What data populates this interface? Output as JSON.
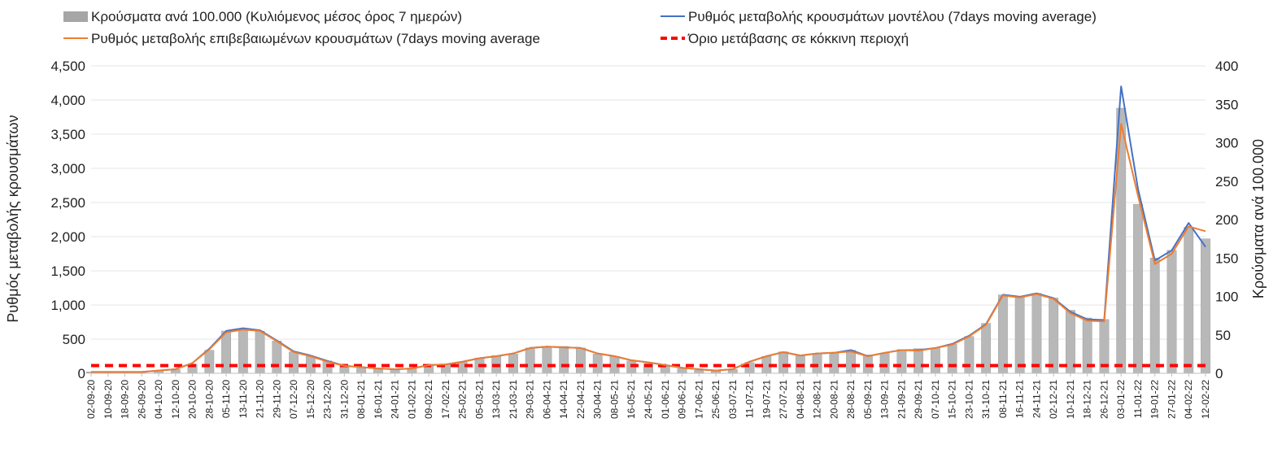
{
  "chart_data": {
    "type": "bar+line",
    "legend": {
      "placement": "top",
      "items": [
        {
          "label": "Κρούσματα ανά 100.000 (Κυλιόμενος μέσος όρος 7 ημερών)",
          "kind": "bar",
          "color": "#a6a6a6"
        },
        {
          "label": "Ρυθμός μεταβολής κρουσμάτων μοντέλου (7days moving average)",
          "kind": "line",
          "color": "#4472c4"
        },
        {
          "label": "Ρυθμός μεταβολής επιβεβαιωμένων κρουσμάτων (7days moving average",
          "kind": "line",
          "color": "#ed7d31"
        },
        {
          "label": "Όριο μετάβασης σε κόκκινη περιοχή",
          "kind": "dashed",
          "color": "#ff0000"
        }
      ]
    },
    "ylabel_left": "Ρυθμός μεταβολής κρουσμάτων",
    "ylabel_right": "Κρούσματα ανά 100.000",
    "ylim_left": [
      0,
      4500
    ],
    "ylim_right": [
      0,
      400
    ],
    "yticks_left": [
      "0",
      "500",
      "1,000",
      "1,500",
      "2,000",
      "2,500",
      "3,000",
      "3,500",
      "4,000",
      "4,500"
    ],
    "yticks_right": [
      "0",
      "50",
      "100",
      "150",
      "200",
      "250",
      "300",
      "350",
      "400"
    ],
    "grid": true,
    "x_categories": [
      "02-09-20",
      "10-09-20",
      "18-09-20",
      "26-09-20",
      "04-10-20",
      "12-10-20",
      "20-10-20",
      "28-10-20",
      "05-11-20",
      "13-11-20",
      "21-11-20",
      "29-11-20",
      "07-12-20",
      "15-12-20",
      "23-12-20",
      "31-12-20",
      "08-01-21",
      "16-01-21",
      "24-01-21",
      "01-02-21",
      "09-02-21",
      "17-02-21",
      "25-02-21",
      "05-03-21",
      "13-03-21",
      "21-03-21",
      "29-03-21",
      "06-04-21",
      "14-04-21",
      "22-04-21",
      "30-04-21",
      "08-05-21",
      "16-05-21",
      "24-05-21",
      "01-06-21",
      "09-06-21",
      "17-06-21",
      "25-06-21",
      "03-07-21",
      "11-07-21",
      "19-07-21",
      "27-07-21",
      "04-08-21",
      "12-08-21",
      "20-08-21",
      "28-08-21",
      "05-09-21",
      "13-09-21",
      "21-09-21",
      "29-09-21",
      "07-10-21",
      "15-10-21",
      "23-10-21",
      "31-10-21",
      "08-11-21",
      "16-11-21",
      "24-11-21",
      "02-12-21",
      "10-12-21",
      "18-12-21",
      "26-12-21",
      "03-01-22",
      "11-01-22",
      "19-01-22",
      "27-01-22",
      "04-02-22",
      "12-02-22"
    ],
    "series": [
      {
        "name": "Κρούσματα ανά 100.000 (Κυλιόμενος μέσος όρος 7 ημερών)",
        "axis": "right",
        "type": "bar",
        "values": [
          2,
          2,
          2,
          2,
          3,
          5,
          12,
          30,
          55,
          57,
          55,
          42,
          28,
          22,
          16,
          10,
          8,
          6,
          5,
          6,
          10,
          11,
          15,
          20,
          23,
          25,
          33,
          35,
          35,
          33,
          25,
          22,
          16,
          13,
          10,
          6,
          4,
          3,
          5,
          14,
          22,
          28,
          24,
          25,
          27,
          30,
          24,
          26,
          31,
          32,
          33,
          38,
          48,
          65,
          102,
          100,
          104,
          98,
          82,
          72,
          70,
          345,
          220,
          150,
          160,
          190,
          175
        ]
      },
      {
        "name": "Ρυθμός μεταβολής κρουσμάτων μοντέλου (7days moving average)",
        "axis": "left",
        "type": "line",
        "values": [
          20,
          20,
          20,
          20,
          40,
          60,
          150,
          360,
          620,
          660,
          630,
          480,
          320,
          260,
          180,
          110,
          90,
          70,
          60,
          70,
          120,
          130,
          170,
          220,
          250,
          290,
          370,
          390,
          380,
          370,
          290,
          250,
          190,
          160,
          120,
          80,
          60,
          40,
          60,
          170,
          250,
          310,
          260,
          290,
          300,
          340,
          250,
          300,
          340,
          340,
          370,
          430,
          550,
          720,
          1150,
          1120,
          1170,
          1100,
          900,
          790,
          780,
          4200,
          2700,
          1650,
          1800,
          2200,
          1850
        ]
      },
      {
        "name": "Ρυθμός μεταβολής επιβεβαιωμένων κρουσμάτων (7days moving average",
        "axis": "left",
        "type": "line",
        "values": [
          20,
          20,
          20,
          20,
          40,
          60,
          150,
          350,
          600,
          640,
          620,
          470,
          310,
          250,
          170,
          110,
          90,
          70,
          60,
          70,
          120,
          130,
          170,
          220,
          250,
          290,
          370,
          390,
          380,
          370,
          290,
          250,
          190,
          160,
          120,
          80,
          60,
          40,
          60,
          170,
          250,
          310,
          260,
          290,
          300,
          320,
          250,
          300,
          340,
          330,
          370,
          420,
          540,
          710,
          1140,
          1110,
          1160,
          1090,
          880,
          770,
          760,
          3650,
          2600,
          1600,
          1750,
          2150,
          2080
        ]
      },
      {
        "name": "Όριο μετάβασης σε κόκκινη περιοχή",
        "axis": "right",
        "type": "hline",
        "values": [
          10
        ]
      }
    ]
  }
}
